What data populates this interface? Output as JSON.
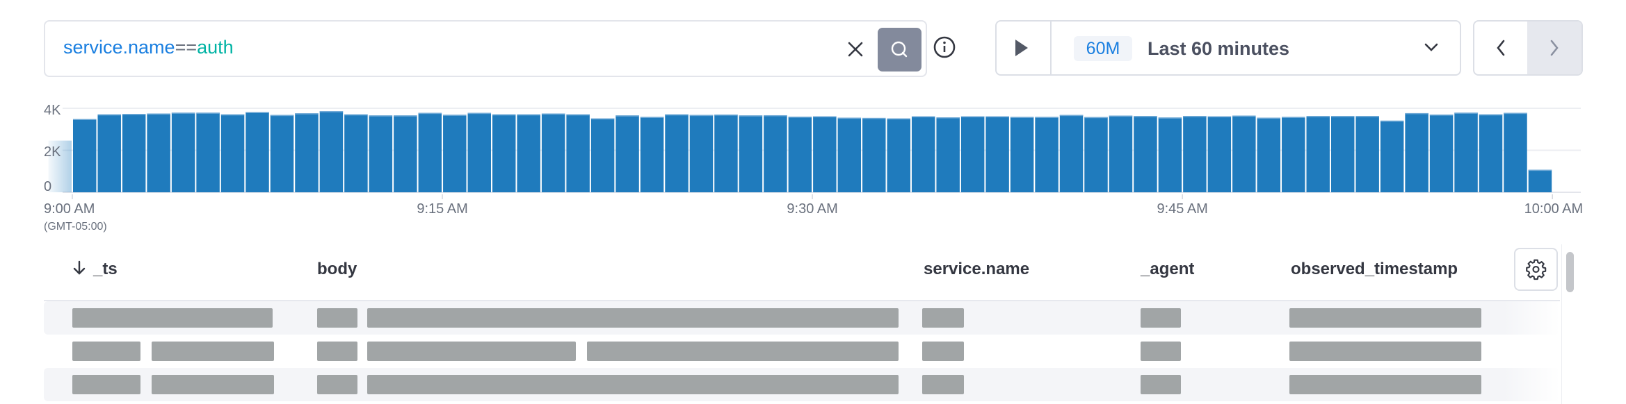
{
  "search": {
    "field": "service.name",
    "operator": "==",
    "value": "auth"
  },
  "icons": {
    "clear": "close-icon",
    "search": "search-icon",
    "info": "info-icon",
    "play": "play-icon",
    "chevron": "chevron-down-icon",
    "prev": "chevron-left-icon",
    "next": "chevron-right-icon",
    "settings": "gear-icon",
    "sort": "arrow-down-icon"
  },
  "time_picker": {
    "badge": "60M",
    "label": "Last 60 minutes"
  },
  "colors": {
    "bar": "#1f7bbd",
    "accent": "#1a7fe0",
    "query_value": "#00b3a4",
    "search_button": "#838a9c"
  },
  "chart_data": {
    "type": "bar",
    "y_ticks": [
      "4K",
      "2K",
      "0"
    ],
    "ylim": [
      0,
      4000
    ],
    "x_ticks": [
      {
        "label": "9:00 AM",
        "sub": "(GMT-05:00)",
        "minute": 0
      },
      {
        "label": "9:15 AM",
        "minute": 15
      },
      {
        "label": "9:30 AM",
        "minute": 30
      },
      {
        "label": "9:45 AM",
        "minute": 45
      },
      {
        "label": "10:00 AM",
        "minute": 60
      }
    ],
    "grid": true,
    "partial_before": {
      "x": "8:59",
      "value": 2460
    },
    "x": [
      "9:00",
      "9:01",
      "9:02",
      "9:03",
      "9:04",
      "9:05",
      "9:06",
      "9:07",
      "9:08",
      "9:09",
      "9:10",
      "9:11",
      "9:12",
      "9:13",
      "9:14",
      "9:15",
      "9:16",
      "9:17",
      "9:18",
      "9:19",
      "9:20",
      "9:21",
      "9:22",
      "9:23",
      "9:24",
      "9:25",
      "9:26",
      "9:27",
      "9:28",
      "9:29",
      "9:30",
      "9:31",
      "9:32",
      "9:33",
      "9:34",
      "9:35",
      "9:36",
      "9:37",
      "9:38",
      "9:39",
      "9:40",
      "9:41",
      "9:42",
      "9:43",
      "9:44",
      "9:45",
      "9:46",
      "9:47",
      "9:48",
      "9:49",
      "9:50",
      "9:51",
      "9:52",
      "9:53",
      "9:54",
      "9:55",
      "9:56",
      "9:57",
      "9:58",
      "9:59"
    ],
    "values": [
      3490,
      3710,
      3730,
      3750,
      3790,
      3790,
      3710,
      3820,
      3680,
      3760,
      3860,
      3710,
      3660,
      3660,
      3780,
      3690,
      3780,
      3710,
      3710,
      3750,
      3710,
      3520,
      3660,
      3590,
      3710,
      3680,
      3700,
      3660,
      3670,
      3600,
      3620,
      3550,
      3540,
      3520,
      3620,
      3570,
      3620,
      3620,
      3590,
      3590,
      3680,
      3580,
      3650,
      3630,
      3560,
      3630,
      3620,
      3650,
      3550,
      3590,
      3630,
      3630,
      3630,
      3410,
      3770,
      3700,
      3790,
      3710,
      3780,
      1070
    ]
  },
  "table": {
    "columns": [
      {
        "label": "_ts",
        "sorted": "descending"
      },
      {
        "label": "body"
      },
      {
        "label": "service.name"
      },
      {
        "label": "_agent"
      },
      {
        "label": "observed_timestamp"
      }
    ]
  }
}
